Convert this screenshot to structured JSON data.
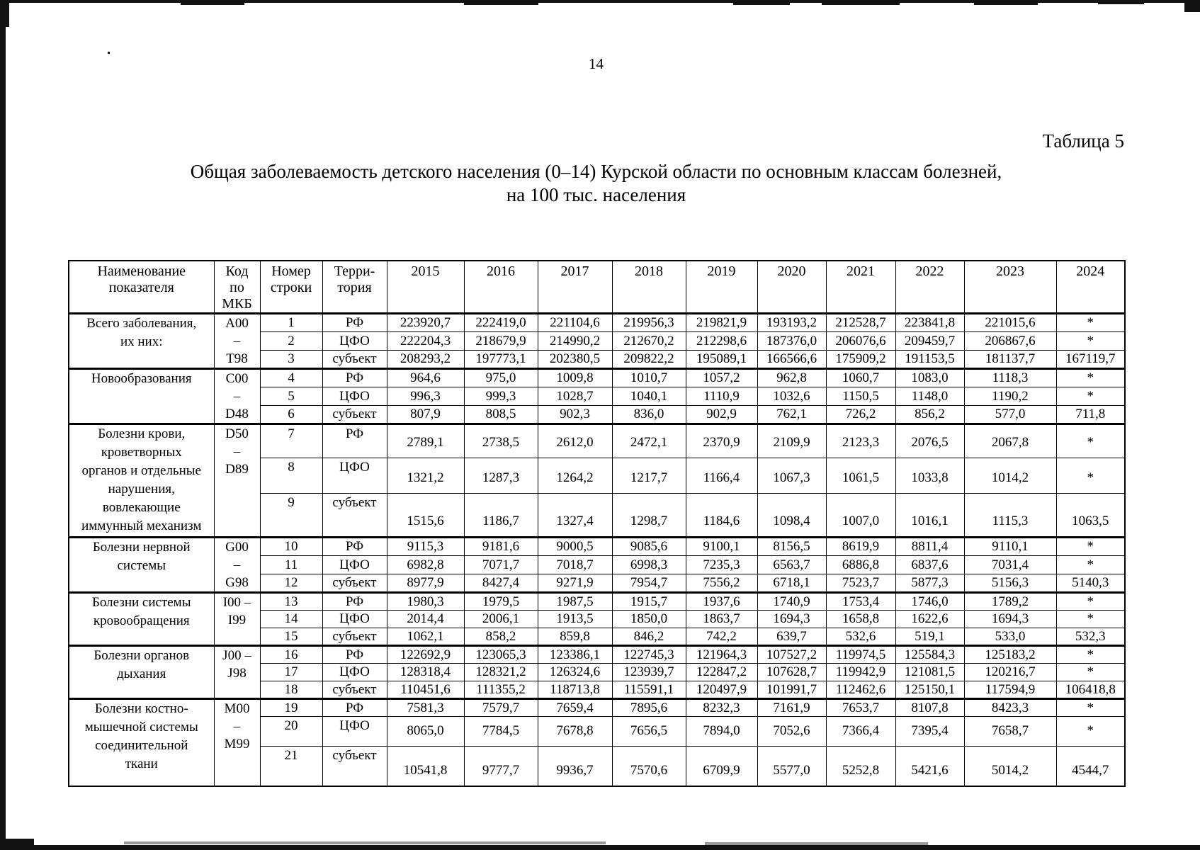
{
  "page_number": "14",
  "table_caption": "Таблица 5",
  "title": {
    "line1": "Общая заболеваемость детского населения (0–14) Курской области по основным классам болезней,",
    "line2": "на 100 тыс. населения"
  },
  "table": {
    "column_headers": {
      "indicator": "Наименование\nпоказателя",
      "code": "Код\nпо\nМКБ",
      "row_number": "Номер\nстроки",
      "territory": "Терри-\nтория"
    },
    "years": [
      "2015",
      "2016",
      "2017",
      "2018",
      "2019",
      "2020",
      "2021",
      "2022",
      "2023",
      "2024"
    ],
    "groups": [
      {
        "name": "Всего заболевания,\nих них:",
        "code": "A00\n–\nT98",
        "rows": [
          {
            "num": "1",
            "territory": "РФ",
            "values": [
              "223920,7",
              "222419,0",
              "221104,6",
              "219956,3",
              "219821,9",
              "193193,2",
              "212528,7",
              "223841,8",
              "221015,6",
              "*"
            ]
          },
          {
            "num": "2",
            "territory": "ЦФО",
            "values": [
              "222204,3",
              "218679,9",
              "214990,2",
              "212670,2",
              "212298,6",
              "187376,0",
              "206076,6",
              "209459,7",
              "206867,6",
              "*"
            ]
          },
          {
            "num": "3",
            "territory": "субъект",
            "values": [
              "208293,2",
              "197773,1",
              "202380,5",
              "209822,2",
              "195089,1",
              "166566,6",
              "175909,2",
              "191153,5",
              "181137,7",
              "167119,7"
            ]
          }
        ]
      },
      {
        "name": "Новообразования",
        "code": "C00\n–\nD48",
        "rows": [
          {
            "num": "4",
            "territory": "РФ",
            "values": [
              "964,6",
              "975,0",
              "1009,8",
              "1010,7",
              "1057,2",
              "962,8",
              "1060,7",
              "1083,0",
              "1118,3",
              "*"
            ]
          },
          {
            "num": "5",
            "territory": "ЦФО",
            "values": [
              "996,3",
              "999,3",
              "1028,7",
              "1040,1",
              "1110,9",
              "1032,6",
              "1150,5",
              "1148,0",
              "1190,2",
              "*"
            ]
          },
          {
            "num": "6",
            "territory": "субъект",
            "values": [
              "807,9",
              "808,5",
              "902,3",
              "836,0",
              "902,9",
              "762,1",
              "726,2",
              "856,2",
              "577,0",
              "711,8"
            ]
          }
        ]
      },
      {
        "name": "Болезни крови,\nкроветворных\nорганов и отдельные\nнарушения,\nвовлекающие\nиммунный механизм",
        "code": "D50\n–\nD89",
        "rows": [
          {
            "num": "7",
            "territory": "РФ",
            "values": [
              "2789,1",
              "2738,5",
              "2612,0",
              "2472,1",
              "2370,9",
              "2109,9",
              "2123,3",
              "2076,5",
              "2067,8",
              "*"
            ]
          },
          {
            "num": "8",
            "territory": "ЦФО",
            "values": [
              "1321,2",
              "1287,3",
              "1264,2",
              "1217,7",
              "1166,4",
              "1067,3",
              "1061,5",
              "1033,8",
              "1014,2",
              "*"
            ]
          },
          {
            "num": "9",
            "territory": "субъект",
            "values": [
              "1515,6",
              "1186,7",
              "1327,4",
              "1298,7",
              "1184,6",
              "1098,4",
              "1007,0",
              "1016,1",
              "1115,3",
              "1063,5"
            ]
          }
        ]
      },
      {
        "name": "Болезни нервной\nсистемы",
        "code": "G00\n–\nG98",
        "rows": [
          {
            "num": "10",
            "territory": "РФ",
            "values": [
              "9115,3",
              "9181,6",
              "9000,5",
              "9085,6",
              "9100,1",
              "8156,5",
              "8619,9",
              "8811,4",
              "9110,1",
              "*"
            ]
          },
          {
            "num": "11",
            "territory": "ЦФО",
            "values": [
              "6982,8",
              "7071,7",
              "7018,7",
              "6998,3",
              "7235,3",
              "6563,7",
              "6886,8",
              "6837,6",
              "7031,4",
              "*"
            ]
          },
          {
            "num": "12",
            "territory": "субъект",
            "values": [
              "8977,9",
              "8427,4",
              "9271,9",
              "7954,7",
              "7556,2",
              "6718,1",
              "7523,7",
              "5877,3",
              "5156,3",
              "5140,3"
            ]
          }
        ]
      },
      {
        "name": "Болезни системы\nкровообращения",
        "code": "I00 –\nI99",
        "rows": [
          {
            "num": "13",
            "territory": "РФ",
            "values": [
              "1980,3",
              "1979,5",
              "1987,5",
              "1915,7",
              "1937,6",
              "1740,9",
              "1753,4",
              "1746,0",
              "1789,2",
              "*"
            ]
          },
          {
            "num": "14",
            "territory": "ЦФО",
            "values": [
              "2014,4",
              "2006,1",
              "1913,5",
              "1850,0",
              "1863,7",
              "1694,3",
              "1658,8",
              "1622,6",
              "1694,3",
              "*"
            ]
          },
          {
            "num": "15",
            "territory": "субъект",
            "values": [
              "1062,1",
              "858,2",
              "859,8",
              "846,2",
              "742,2",
              "639,7",
              "532,6",
              "519,1",
              "533,0",
              "532,3"
            ]
          }
        ]
      },
      {
        "name": "Болезни органов\nдыхания",
        "code": "J00 –\nJ98",
        "rows": [
          {
            "num": "16",
            "territory": "РФ",
            "values": [
              "122692,9",
              "123065,3",
              "123386,1",
              "122745,3",
              "121964,3",
              "107527,2",
              "119974,5",
              "125584,3",
              "125183,2",
              "*"
            ]
          },
          {
            "num": "17",
            "territory": "ЦФО",
            "values": [
              "128318,4",
              "128321,2",
              "126324,6",
              "123939,7",
              "122847,2",
              "107628,7",
              "119942,9",
              "121081,5",
              "120216,7",
              "*"
            ]
          },
          {
            "num": "18",
            "territory": "субъект",
            "values": [
              "110451,6",
              "111355,2",
              "118713,8",
              "115591,1",
              "120497,9",
              "101991,7",
              "112462,6",
              "125150,1",
              "117594,9",
              "106418,8"
            ]
          }
        ]
      },
      {
        "name": "Болезни костно-\nмышечной системы\nсоединительной\nткани",
        "code": "M00\n–\nM99",
        "rows": [
          {
            "num": "19",
            "territory": "РФ",
            "values": [
              "7581,3",
              "7579,7",
              "7659,4",
              "7895,6",
              "8232,3",
              "7161,9",
              "7653,7",
              "8107,8",
              "8423,3",
              "*"
            ]
          },
          {
            "num": "20",
            "territory": "ЦФО",
            "values": [
              "8065,0",
              "7784,5",
              "7678,8",
              "7656,5",
              "7894,0",
              "7052,6",
              "7366,4",
              "7395,4",
              "7658,7",
              "*"
            ]
          },
          {
            "num": "21",
            "territory": "субъект",
            "values": [
              "10541,8",
              "9777,7",
              "9936,7",
              "7570,6",
              "6709,9",
              "5577,0",
              "5252,8",
              "5421,6",
              "5014,2",
              "4544,7"
            ]
          }
        ]
      }
    ]
  }
}
